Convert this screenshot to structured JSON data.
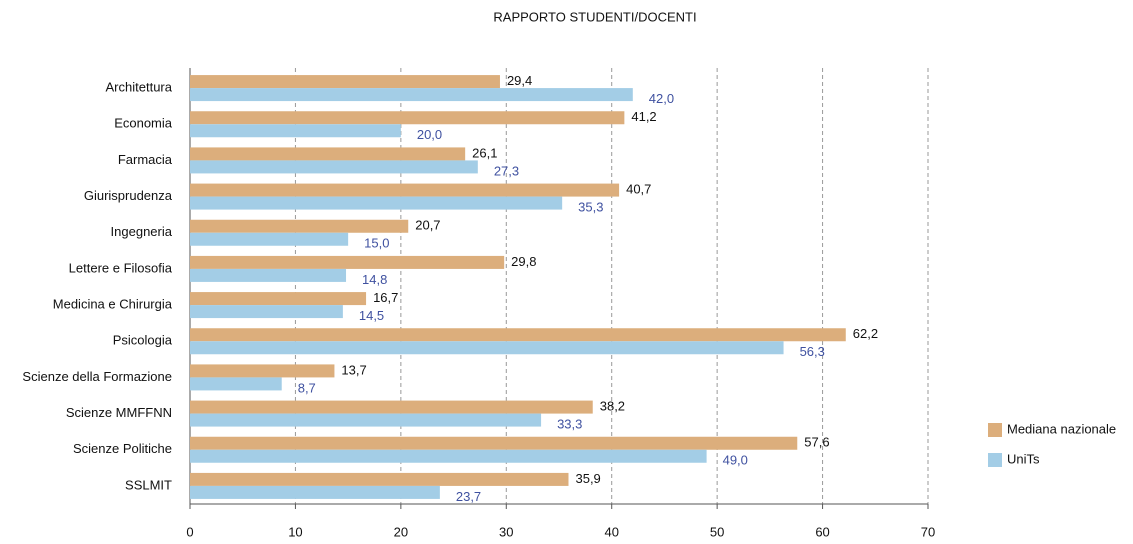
{
  "chart_data": {
    "type": "hbar",
    "title": "RAPPORTO STUDENTI/DOCENTI",
    "categories": [
      "Architettura",
      "Economia",
      "Farmacia",
      "Giurisprudenza",
      "Ingegneria",
      "Lettere e Filosofia",
      "Medicina e Chirurgia",
      "Psicologia",
      "Scienze della Formazione",
      "Scienze MMFFNN",
      "Scienze Politiche",
      "SSLMIT"
    ],
    "series": [
      {
        "name": "Mediana nazionale",
        "color": "#dcae7c",
        "label_color": "#111111",
        "values": [
          29.4,
          41.2,
          26.1,
          40.7,
          20.7,
          29.8,
          16.7,
          62.2,
          13.7,
          38.2,
          57.6,
          35.9
        ],
        "value_labels": [
          "29,4",
          "41,2",
          "26,1",
          "40,7",
          "20,7",
          "29,8",
          "16,7",
          "62,2",
          "13,7",
          "38,2",
          "57,6",
          "35,9"
        ]
      },
      {
        "name": "UniTs",
        "color": "#a3cde6",
        "label_color": "#3f51a0",
        "values": [
          42.0,
          20.0,
          27.3,
          35.3,
          15.0,
          14.8,
          14.5,
          56.3,
          8.7,
          33.3,
          49.0,
          23.7
        ],
        "value_labels": [
          "42,0",
          "20,0",
          "27,3",
          "35,3",
          "15,0",
          "14,8",
          "14,5",
          "56,3",
          "8,7",
          "33,3",
          "49,0",
          "23,7"
        ]
      }
    ],
    "xlim": [
      0,
      70
    ],
    "xticks": [
      0,
      10,
      20,
      30,
      40,
      50,
      60,
      70
    ],
    "grid": true,
    "legend": "right"
  }
}
